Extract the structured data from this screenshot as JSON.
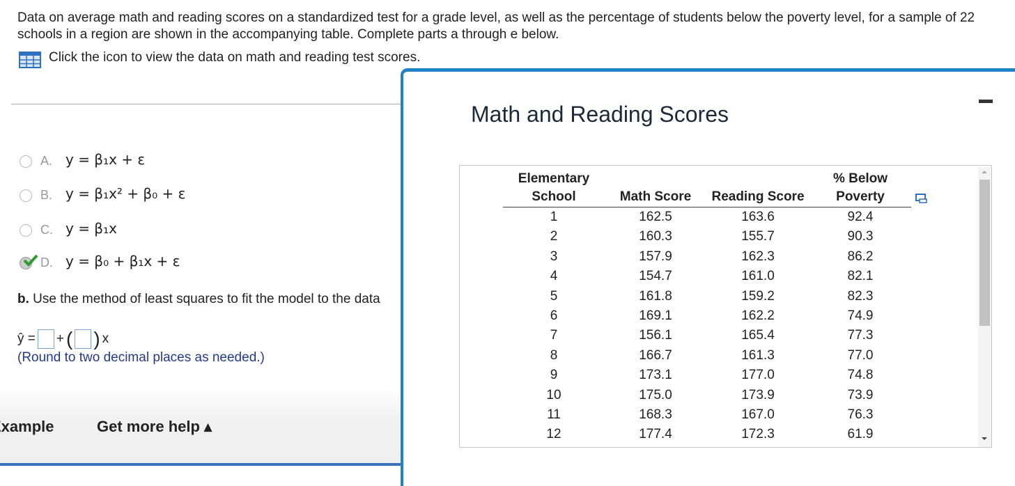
{
  "question": {
    "intro": "Data on average math and reading scores on a standardized test for a grade level, as well as the percentage of students below the poverty level, for a sample of 22 schools in a region are shown in the accompanying table. Complete parts a through e below.",
    "link": "Click the icon to view the data on math and reading test scores."
  },
  "options": [
    {
      "letter": "A.",
      "formula": "y = β₁x + ε"
    },
    {
      "letter": "B.",
      "formula": "y = β₁x² + β₀ + ε"
    },
    {
      "letter": "C.",
      "formula": "y = β₁x"
    },
    {
      "letter": "D.",
      "formula": "y = β₀ + β₁x + ε"
    }
  ],
  "part_b": {
    "label": "b.",
    "text": "Use the method of least squares to fit the model to the data",
    "yhat": "ŷ =",
    "plus": "+",
    "x": "x",
    "note": "(Round to two decimal places as needed.)"
  },
  "footer": {
    "example": "Example",
    "help": "Get more help ▴"
  },
  "dialog": {
    "title": "Math and Reading Scores",
    "table": {
      "headers": [
        "Elementary School",
        "Math Score",
        "Reading Score",
        "% Below Poverty"
      ],
      "rows": [
        [
          "1",
          "162.5",
          "163.6",
          "92.4"
        ],
        [
          "2",
          "160.3",
          "155.7",
          "90.3"
        ],
        [
          "3",
          "157.9",
          "162.3",
          "86.2"
        ],
        [
          "4",
          "154.7",
          "161.0",
          "82.1"
        ],
        [
          "5",
          "161.8",
          "159.2",
          "82.3"
        ],
        [
          "6",
          "169.1",
          "162.2",
          "74.9"
        ],
        [
          "7",
          "156.1",
          "165.4",
          "77.3"
        ],
        [
          "8",
          "166.7",
          "161.3",
          "77.0"
        ],
        [
          "9",
          "173.1",
          "177.0",
          "74.8"
        ],
        [
          "10",
          "175.0",
          "173.9",
          "73.9"
        ],
        [
          "11",
          "168.3",
          "167.0",
          "76.3"
        ],
        [
          "12",
          "177.4",
          "172.3",
          "61.9"
        ]
      ]
    }
  }
}
